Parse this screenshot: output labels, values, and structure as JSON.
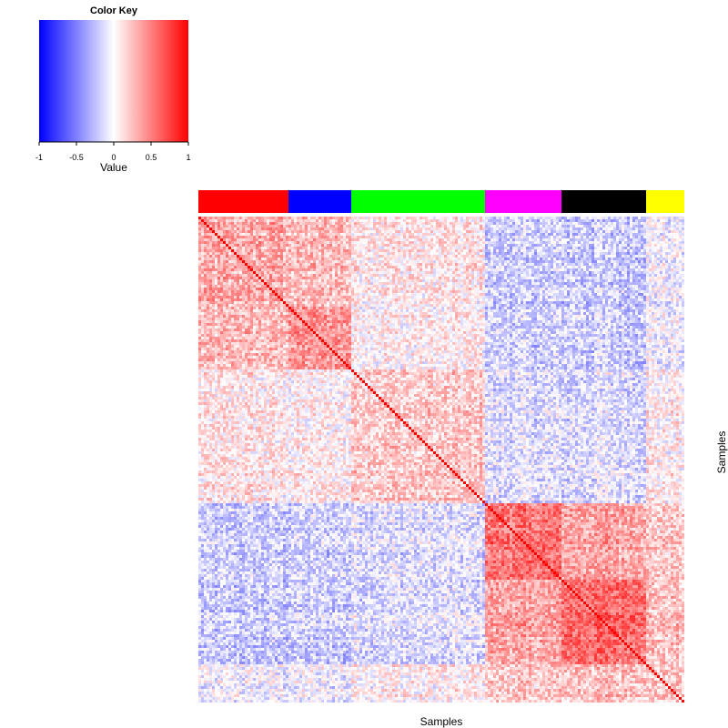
{
  "chart_data": {
    "type": "heatmap",
    "title": "",
    "xlabel": "Samples",
    "ylabel": "Samples",
    "value_range": [
      -1,
      1
    ],
    "grid": false,
    "matrix_kind": "symmetric correlation matrix with unit diagonal",
    "color_key": {
      "title": "Color Key",
      "label": "Value",
      "ticks": [
        "-1",
        "-0.5",
        "0",
        "0.5",
        "1"
      ],
      "tick_values": [
        -1,
        -0.5,
        0,
        0.5,
        1
      ],
      "low_color": "#0000ff",
      "mid_color": "#ffffff",
      "high_color": "#ff0000",
      "placement": "top-left"
    },
    "groups": [
      {
        "color": "#ff0000",
        "fraction": 0.187
      },
      {
        "color": "#0000ff",
        "fraction": 0.129
      },
      {
        "color": "#00ff00",
        "fraction": 0.275
      },
      {
        "color": "#ff00ff",
        "fraction": 0.157
      },
      {
        "color": "#000000",
        "fraction": 0.176
      },
      {
        "color": "#ffff00",
        "fraction": 0.076
      }
    ],
    "block_mean_correlation": [
      [
        0.32,
        0.26,
        0.08,
        -0.2,
        -0.2,
        -0.05
      ],
      [
        0.26,
        0.42,
        0.05,
        -0.18,
        -0.18,
        -0.05
      ],
      [
        0.08,
        0.05,
        0.2,
        -0.12,
        -0.12,
        0.05
      ],
      [
        -0.2,
        -0.18,
        -0.12,
        0.55,
        0.35,
        0.2
      ],
      [
        -0.2,
        -0.18,
        -0.12,
        0.35,
        0.6,
        0.25
      ],
      [
        -0.05,
        -0.05,
        0.05,
        0.2,
        0.25,
        0.22
      ]
    ]
  }
}
